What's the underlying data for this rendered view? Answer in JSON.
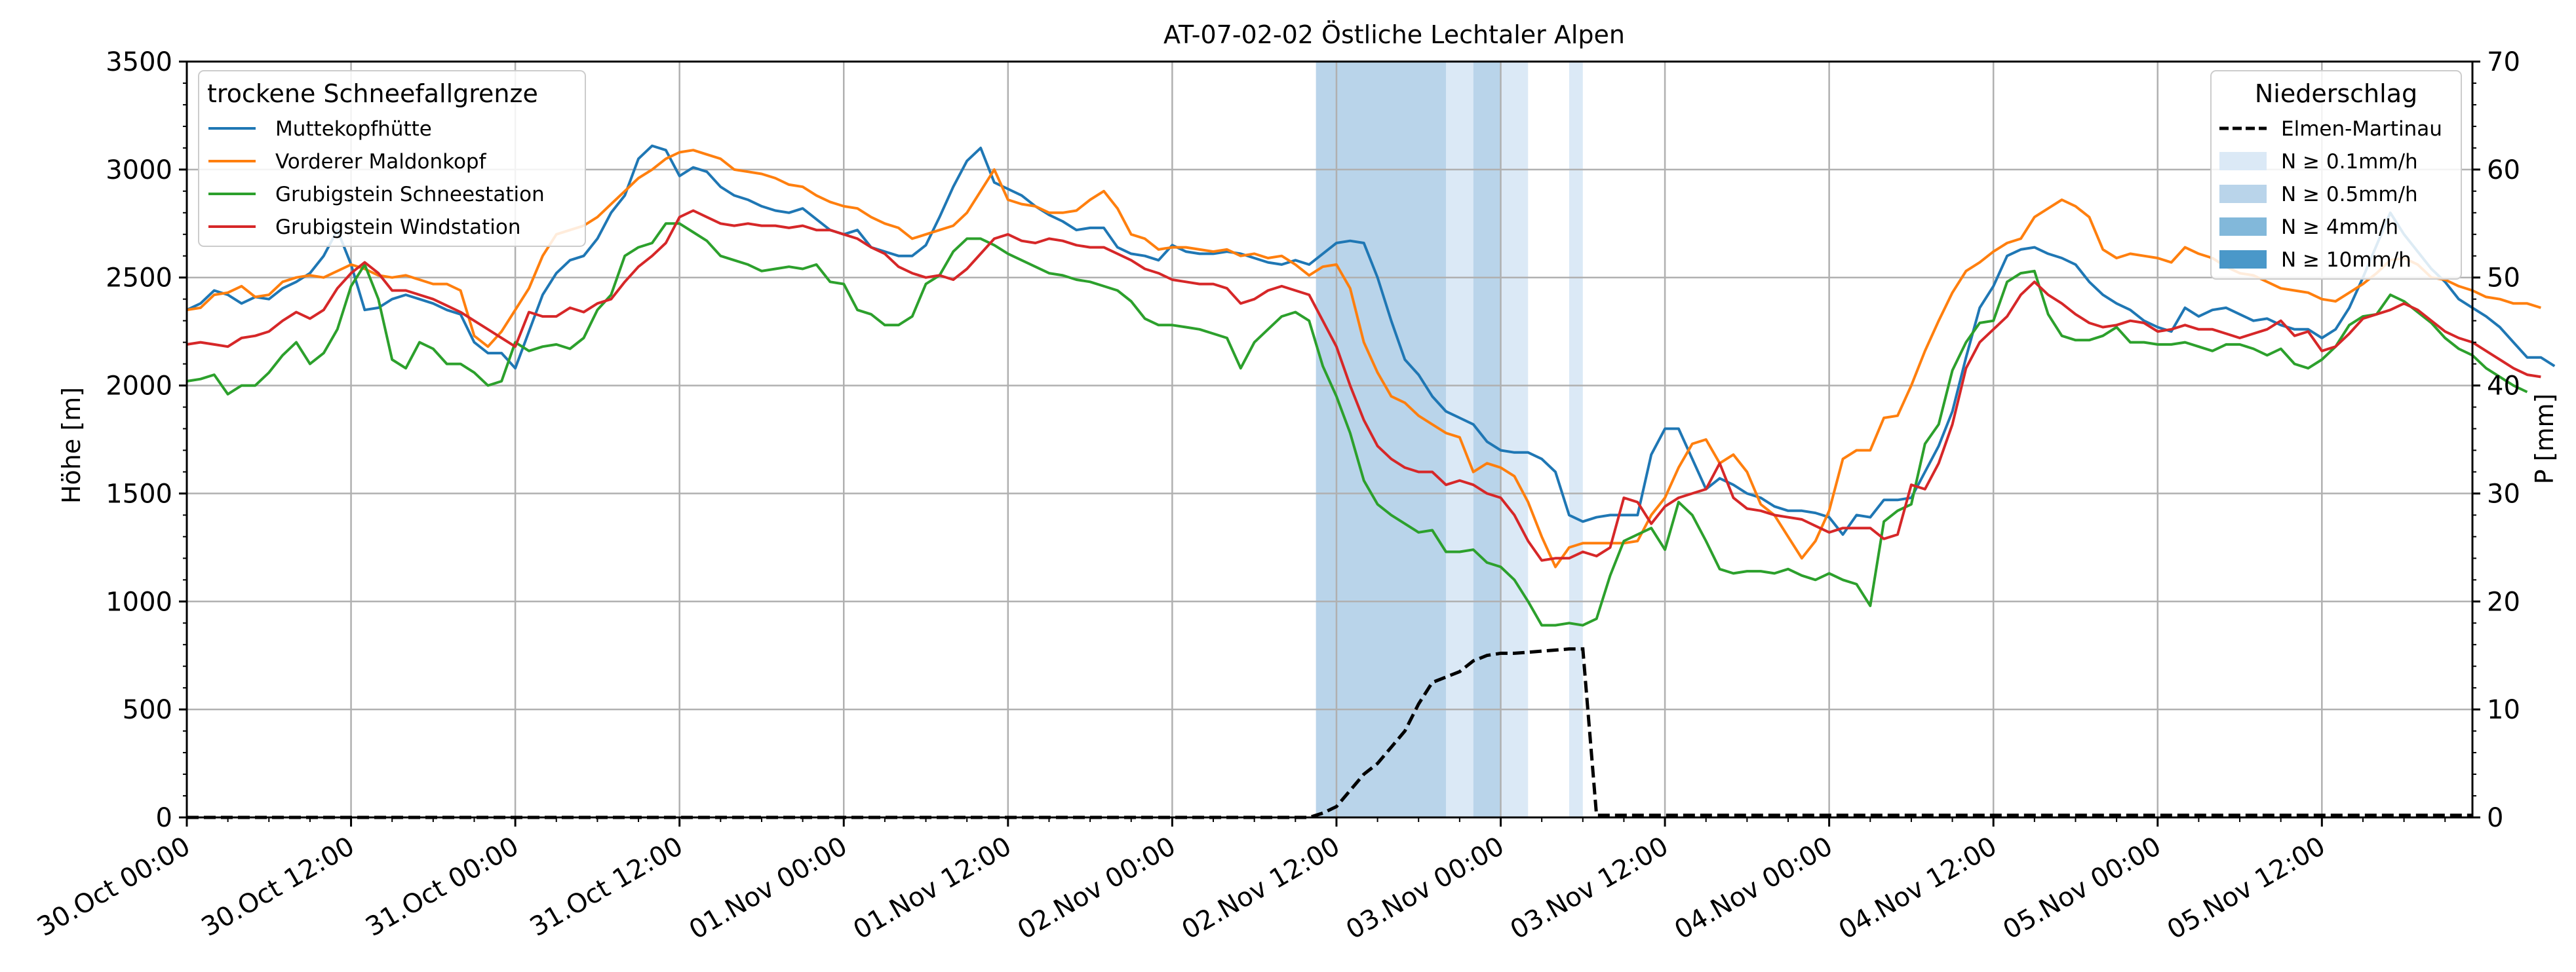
{
  "chart_data": {
    "type": "line",
    "title": "AT-07-02-02 Östliche Lechtaler Alpen",
    "ylabel": "Höhe [m]",
    "ylabel_right": "P [mm]",
    "ylim": [
      0,
      3500
    ],
    "ylim_right": [
      0,
      70
    ],
    "y_ticks": [
      0,
      500,
      1000,
      1500,
      2000,
      2500,
      3000,
      3500
    ],
    "y_ticks_right": [
      0,
      10,
      20,
      30,
      40,
      50,
      60,
      70
    ],
    "x_unit": "hours since 30.Oct 00:00",
    "xlim": [
      0,
      167
    ],
    "x_ticks": [
      {
        "x": 0,
        "label": "30.Oct 00:00"
      },
      {
        "x": 12,
        "label": "30.Oct 12:00"
      },
      {
        "x": 24,
        "label": "31.Oct 00:00"
      },
      {
        "x": 36,
        "label": "31.Oct 12:00"
      },
      {
        "x": 48,
        "label": "01.Nov 00:00"
      },
      {
        "x": 60,
        "label": "01.Nov 12:00"
      },
      {
        "x": 72,
        "label": "02.Nov 00:00"
      },
      {
        "x": 84,
        "label": "02.Nov 12:00"
      },
      {
        "x": 96,
        "label": "03.Nov 00:00"
      },
      {
        "x": 108,
        "label": "03.Nov 12:00"
      },
      {
        "x": 120,
        "label": "04.Nov 00:00"
      },
      {
        "x": 132,
        "label": "04.Nov 12:00"
      },
      {
        "x": 144,
        "label": "05.Nov 00:00"
      },
      {
        "x": 156,
        "label": "05.Nov 12:00"
      }
    ],
    "grid": true,
    "legend_left": {
      "title": "trockene Schneefallgrenze",
      "placement": "top-left"
    },
    "legend_right": {
      "title": "Niederschlag",
      "placement": "top-right",
      "line_entry": "Elmen-Martinau",
      "intensity_entries": [
        {
          "label": "N ≥ 0.1mm/h",
          "color": "#dbe9f6"
        },
        {
          "label": "N ≥ 0.5mm/h",
          "color": "#b9d4ea"
        },
        {
          "label": "N ≥ 4mm/h",
          "color": "#82b8da"
        },
        {
          "label": "N ≥ 10mm/h",
          "color": "#4a98c9"
        }
      ]
    },
    "precip_bands": [
      {
        "x0": 82.5,
        "x1": 83.5,
        "level": "N ≥ 0.5mm/h"
      },
      {
        "x0": 83.5,
        "x1": 92,
        "level": "N ≥ 0.5mm/h"
      },
      {
        "x0": 92,
        "x1": 94,
        "level": "N ≥ 0.1mm/h"
      },
      {
        "x0": 94,
        "x1": 96,
        "level": "N ≥ 0.5mm/h"
      },
      {
        "x0": 96,
        "x1": 98,
        "level": "N ≥ 0.1mm/h"
      },
      {
        "x0": 101,
        "x1": 102,
        "level": "N ≥ 0.1mm/h"
      }
    ],
    "series": [
      {
        "name": "Muttekopfhütte",
        "color": "#1f77b4",
        "values": [
          2350,
          2380,
          2440,
          2420,
          2380,
          2410,
          2400,
          2450,
          2480,
          2520,
          2600,
          2720,
          2560,
          2350,
          2360,
          2400,
          2420,
          2400,
          2380,
          2350,
          2330,
          2200,
          2150,
          2150,
          2080,
          2250,
          2420,
          2520,
          2580,
          2600,
          2680,
          2800,
          2880,
          3050,
          3110,
          3090,
          2970,
          3010,
          2990,
          2920,
          2880,
          2860,
          2830,
          2810,
          2800,
          2820,
          2770,
          2720,
          2700,
          2720,
          2640,
          2620,
          2600,
          2600,
          2650,
          2780,
          2920,
          3040,
          3100,
          2940,
          2910,
          2880,
          2830,
          2790,
          2760,
          2720,
          2730,
          2730,
          2640,
          2610,
          2600,
          2580,
          2650,
          2620,
          2610,
          2610,
          2620,
          2610,
          2590,
          2570,
          2560,
          2580,
          2560,
          2610,
          2660,
          2670,
          2660,
          2500,
          2300,
          2120,
          2050,
          1950,
          1880,
          1850,
          1820,
          1740,
          1700,
          1690,
          1690,
          1660,
          1600,
          1400,
          1370,
          1390,
          1400,
          1400,
          1400,
          1680,
          1800,
          1800,
          1660,
          1520,
          1570,
          1540,
          1500,
          1480,
          1440,
          1420,
          1420,
          1410,
          1390,
          1310,
          1400,
          1390,
          1470,
          1470,
          1480,
          1600,
          1720,
          1880,
          2130,
          2360,
          2460,
          2600,
          2630,
          2640,
          2610,
          2590,
          2560,
          2480,
          2420,
          2380,
          2350,
          2300,
          2270,
          2250,
          2360,
          2320,
          2350,
          2360,
          2330,
          2300,
          2310,
          2280,
          2260,
          2260,
          2220,
          2260,
          2360,
          2500,
          2650,
          2800,
          2700,
          2620,
          2540,
          2480,
          2400,
          2360,
          2320,
          2270,
          2200,
          2130,
          2130,
          2090
        ]
      },
      {
        "name": "Vorderer Maldonkopf",
        "color": "#ff7f0e",
        "values": [
          2350,
          2360,
          2420,
          2430,
          2460,
          2410,
          2420,
          2480,
          2500,
          2510,
          2500,
          2530,
          2560,
          2540,
          2510,
          2500,
          2510,
          2490,
          2470,
          2470,
          2440,
          2230,
          2180,
          2250,
          2350,
          2450,
          2600,
          2700,
          2720,
          2740,
          2780,
          2840,
          2900,
          2960,
          3000,
          3050,
          3080,
          3090,
          3070,
          3050,
          3000,
          2990,
          2980,
          2960,
          2930,
          2920,
          2880,
          2850,
          2830,
          2820,
          2780,
          2750,
          2730,
          2680,
          2700,
          2720,
          2740,
          2800,
          2900,
          3000,
          2860,
          2840,
          2830,
          2800,
          2800,
          2810,
          2860,
          2900,
          2820,
          2700,
          2680,
          2630,
          2640,
          2640,
          2630,
          2620,
          2630,
          2600,
          2610,
          2590,
          2600,
          2560,
          2510,
          2550,
          2560,
          2450,
          2200,
          2060,
          1950,
          1920,
          1860,
          1820,
          1780,
          1760,
          1600,
          1640,
          1620,
          1580,
          1460,
          1300,
          1160,
          1250,
          1270,
          1270,
          1270,
          1270,
          1280,
          1400,
          1480,
          1620,
          1730,
          1750,
          1640,
          1680,
          1600,
          1450,
          1400,
          1300,
          1200,
          1280,
          1420,
          1660,
          1700,
          1700,
          1850,
          1860,
          2000,
          2160,
          2300,
          2430,
          2530,
          2570,
          2620,
          2660,
          2680,
          2780,
          2820,
          2860,
          2830,
          2780,
          2630,
          2590,
          2610,
          2600,
          2590,
          2570,
          2640,
          2610,
          2590,
          2550,
          2520,
          2510,
          2480,
          2450,
          2440,
          2430,
          2400,
          2390,
          2430,
          2470,
          2520,
          2580,
          2590,
          2560,
          2500,
          2490,
          2460,
          2440,
          2410,
          2400,
          2380,
          2380,
          2360
        ]
      },
      {
        "name": "Grubigstein Schneestation",
        "color": "#2ca02c",
        "values": [
          2020,
          2030,
          2050,
          1960,
          2000,
          2000,
          2060,
          2140,
          2200,
          2100,
          2150,
          2260,
          2460,
          2560,
          2400,
          2120,
          2080,
          2200,
          2170,
          2100,
          2100,
          2060,
          2000,
          2020,
          2200,
          2160,
          2180,
          2190,
          2170,
          2220,
          2350,
          2420,
          2600,
          2640,
          2660,
          2750,
          2750,
          2710,
          2670,
          2600,
          2580,
          2560,
          2530,
          2540,
          2550,
          2540,
          2560,
          2480,
          2470,
          2350,
          2330,
          2280,
          2280,
          2320,
          2470,
          2510,
          2620,
          2680,
          2680,
          2650,
          2610,
          2580,
          2550,
          2520,
          2510,
          2490,
          2480,
          2460,
          2440,
          2390,
          2310,
          2280,
          2280,
          2270,
          2260,
          2240,
          2220,
          2080,
          2200,
          2260,
          2320,
          2340,
          2300,
          2090,
          1950,
          1780,
          1560,
          1450,
          1400,
          1360,
          1320,
          1330,
          1230,
          1230,
          1240,
          1180,
          1160,
          1100,
          1000,
          890,
          890,
          900,
          890,
          920,
          1120,
          1280,
          1310,
          1340,
          1240,
          1460,
          1400,
          1280,
          1150,
          1130,
          1140,
          1140,
          1130,
          1150,
          1120,
          1100,
          1130,
          1100,
          1080,
          980,
          1370,
          1420,
          1450,
          1730,
          1820,
          2070,
          2200,
          2290,
          2300,
          2480,
          2520,
          2530,
          2330,
          2230,
          2210,
          2210,
          2230,
          2270,
          2200,
          2200,
          2190,
          2190,
          2200,
          2180,
          2160,
          2190,
          2190,
          2170,
          2140,
          2170,
          2100,
          2080,
          2120,
          2180,
          2280,
          2320,
          2330,
          2420,
          2390,
          2340,
          2290,
          2220,
          2170,
          2140,
          2080,
          2040,
          2000,
          1970
        ]
      },
      {
        "name": "Grubigstein Windstation",
        "color": "#d62728",
        "values": [
          2190,
          2200,
          2190,
          2180,
          2220,
          2230,
          2250,
          2300,
          2340,
          2310,
          2350,
          2450,
          2520,
          2570,
          2520,
          2440,
          2440,
          2420,
          2400,
          2370,
          2340,
          2300,
          2260,
          2220,
          2180,
          2340,
          2320,
          2320,
          2360,
          2340,
          2380,
          2400,
          2480,
          2550,
          2600,
          2660,
          2780,
          2810,
          2780,
          2750,
          2740,
          2750,
          2740,
          2740,
          2730,
          2740,
          2720,
          2720,
          2700,
          2680,
          2640,
          2610,
          2550,
          2520,
          2500,
          2510,
          2490,
          2540,
          2610,
          2680,
          2700,
          2670,
          2660,
          2680,
          2670,
          2650,
          2640,
          2640,
          2610,
          2580,
          2540,
          2520,
          2490,
          2480,
          2470,
          2470,
          2450,
          2380,
          2400,
          2440,
          2460,
          2440,
          2420,
          2300,
          2180,
          2000,
          1840,
          1720,
          1660,
          1620,
          1600,
          1600,
          1540,
          1560,
          1540,
          1500,
          1480,
          1400,
          1280,
          1190,
          1200,
          1200,
          1230,
          1210,
          1250,
          1480,
          1460,
          1360,
          1440,
          1480,
          1500,
          1520,
          1640,
          1480,
          1430,
          1420,
          1400,
          1390,
          1380,
          1350,
          1320,
          1340,
          1340,
          1340,
          1290,
          1310,
          1540,
          1520,
          1640,
          1820,
          2080,
          2200,
          2260,
          2320,
          2420,
          2480,
          2420,
          2380,
          2330,
          2290,
          2270,
          2280,
          2300,
          2290,
          2250,
          2260,
          2280,
          2260,
          2260,
          2240,
          2220,
          2240,
          2260,
          2300,
          2230,
          2250,
          2160,
          2180,
          2240,
          2310,
          2330,
          2350,
          2380,
          2350,
          2300,
          2250,
          2220,
          2200,
          2160,
          2120,
          2080,
          2050,
          2040
        ]
      }
    ],
    "precip_series": {
      "name": "Elmen-Martinau",
      "color": "#000000",
      "points": [
        [
          0,
          0
        ],
        [
          82,
          0
        ],
        [
          83,
          0.4
        ],
        [
          84,
          1.0
        ],
        [
          85,
          2.5
        ],
        [
          86,
          4.0
        ],
        [
          87,
          5.0
        ],
        [
          88,
          6.5
        ],
        [
          89,
          8.0
        ],
        [
          90,
          10.5
        ],
        [
          91,
          12.5
        ],
        [
          92,
          13.0
        ],
        [
          93,
          13.5
        ],
        [
          94,
          14.5
        ],
        [
          95,
          15.0
        ],
        [
          96,
          15.2
        ],
        [
          97,
          15.2
        ],
        [
          98,
          15.3
        ],
        [
          99,
          15.4
        ],
        [
          100,
          15.5
        ],
        [
          101,
          15.6
        ],
        [
          102,
          15.6
        ],
        [
          103,
          0.2
        ],
        [
          104,
          0.2
        ],
        [
          167,
          0.2
        ]
      ]
    }
  }
}
